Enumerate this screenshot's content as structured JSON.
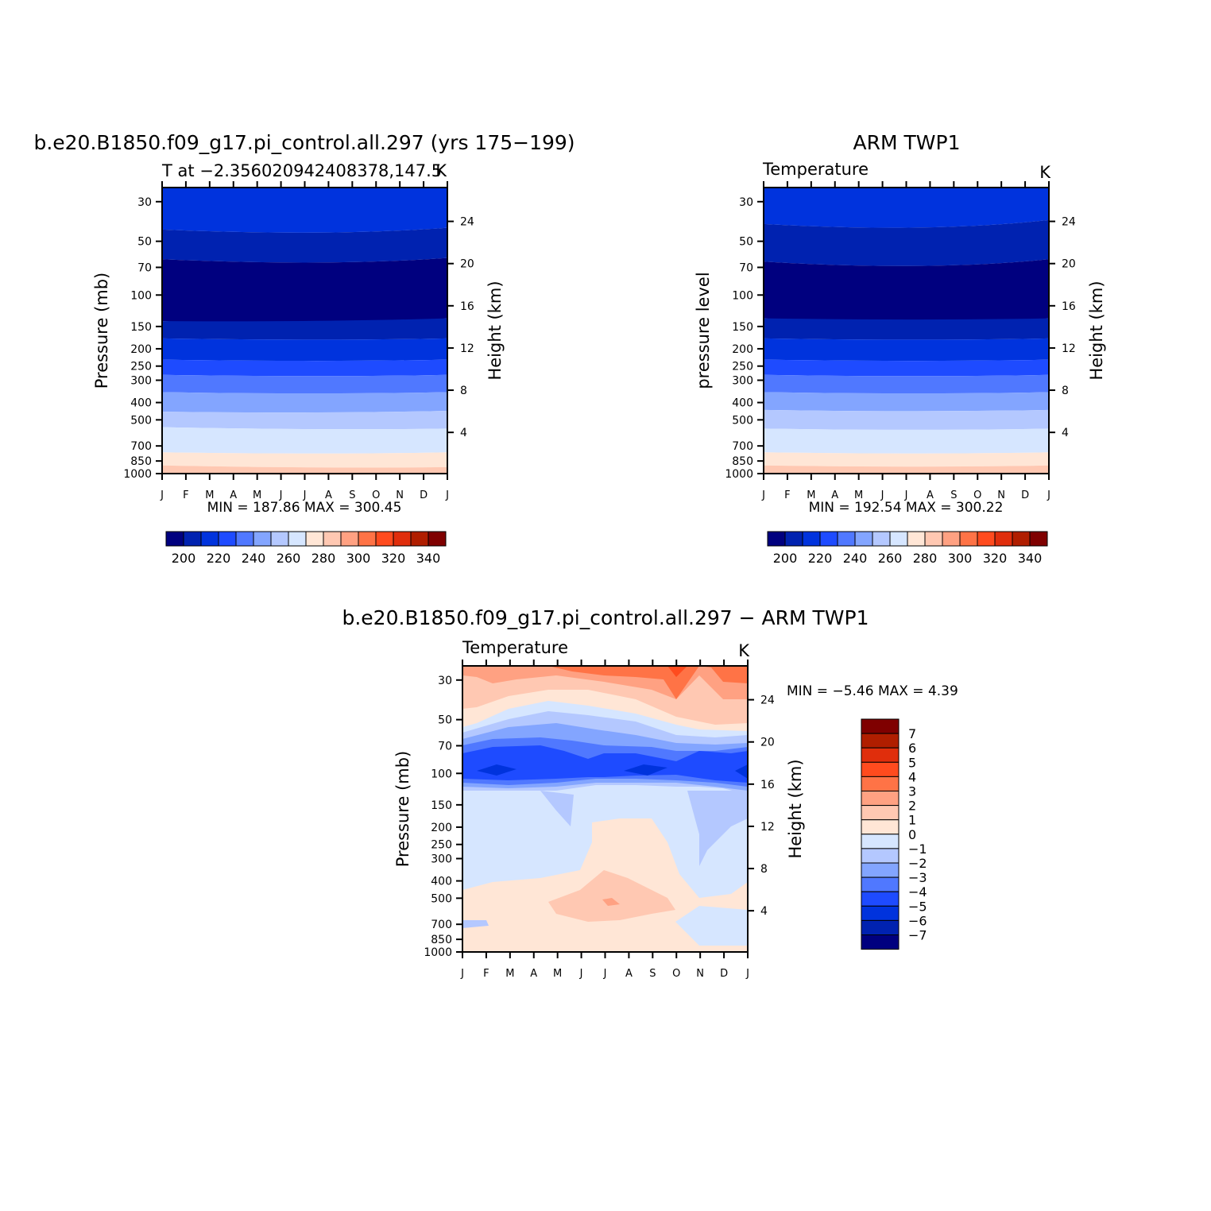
{
  "colors": {
    "abs_scale": [
      "#00007f",
      "#0022b0",
      "#0033dd",
      "#1e4bff",
      "#5078ff",
      "#83a5ff",
      "#b4c8ff",
      "#d6e6ff",
      "#ffe6d6",
      "#ffc8b2",
      "#ffa182",
      "#ff7346",
      "#ff4b1e",
      "#e02e0c",
      "#b01e00",
      "#7f0000"
    ],
    "diff_scale": [
      "#00007f",
      "#0022b0",
      "#0033dd",
      "#1e4bff",
      "#5078ff",
      "#83a5ff",
      "#b4c8ff",
      "#d6e6ff",
      "#ffe6d6",
      "#ffc8b2",
      "#ffa182",
      "#ff7346",
      "#ff4b1e",
      "#e02e0c",
      "#b01e00",
      "#7f0000"
    ]
  },
  "chart_data": [
    {
      "type": "heatmap",
      "title": "b.e20.B1850.f09_g17.pi_control.all.297 (yrs 175−199)",
      "subtitle": "T at −2.356020942408378,147.5",
      "units": "K",
      "ylabel": "Pressure (mb)",
      "ylabel_right": "Height (km)",
      "x_ticks": [
        "J",
        "F",
        "M",
        "A",
        "M",
        "J",
        "J",
        "A",
        "S",
        "O",
        "N",
        "D",
        "J"
      ],
      "y_ticks": [
        "30",
        "50",
        "70",
        "100",
        "150",
        "200",
        "250",
        "300",
        "400",
        "500",
        "700",
        "850",
        "1000"
      ],
      "y_ticks_right": [
        "24",
        "20",
        "16",
        "12",
        "8",
        "4"
      ],
      "y_scale": "log",
      "ylim": [
        1000,
        25
      ],
      "stats": "MIN =  187.86  MAX =  300.45",
      "colorbar_labels": [
        "200",
        "220",
        "240",
        "260",
        "280",
        "300",
        "320",
        "340"
      ],
      "levels_left": [
        25,
        43,
        63,
        140,
        175,
        230,
        280,
        350,
        450,
        550,
        760,
        900,
        1000
      ],
      "levels_right": [
        25,
        42,
        62,
        135,
        175,
        230,
        280,
        350,
        445,
        560,
        760,
        920,
        1000
      ],
      "level_colors": [
        2,
        1,
        0,
        1,
        2,
        3,
        4,
        5,
        6,
        7,
        8,
        9,
        10
      ]
    },
    {
      "type": "heatmap",
      "title": "ARM TWP1",
      "subtitle": "Temperature",
      "units": "K",
      "ylabel": "pressure level",
      "ylabel_right": "Height (km)",
      "x_ticks": [
        "J",
        "F",
        "M",
        "A",
        "M",
        "J",
        "J",
        "A",
        "S",
        "O",
        "N",
        "D",
        "J"
      ],
      "y_ticks": [
        "30",
        "50",
        "70",
        "100",
        "150",
        "200",
        "250",
        "300",
        "400",
        "500",
        "700",
        "850",
        "1000"
      ],
      "y_ticks_right": [
        "24",
        "20",
        "16",
        "12",
        "8",
        "4"
      ],
      "y_scale": "log",
      "ylim": [
        1000,
        25
      ],
      "stats": "MIN =  192.54  MAX =  300.22",
      "colorbar_labels": [
        "200",
        "220",
        "240",
        "260",
        "280",
        "300",
        "320",
        "340"
      ],
      "levels_left": [
        25,
        40,
        65,
        135,
        175,
        230,
        280,
        350,
        440,
        560,
        760,
        900,
        1000
      ],
      "levels_right": [
        25,
        38,
        63,
        135,
        175,
        230,
        280,
        350,
        440,
        560,
        760,
        900,
        1000
      ],
      "level_colors": [
        2,
        1,
        0,
        1,
        2,
        3,
        4,
        5,
        6,
        7,
        8,
        9,
        10
      ]
    },
    {
      "type": "heatmap",
      "title": "b.e20.B1850.f09_g17.pi_control.all.297 − ARM TWP1",
      "subtitle": "Temperature",
      "units": "K",
      "ylabel": "Pressure (mb)",
      "ylabel_right": "Height (km)",
      "x_ticks": [
        "J",
        "F",
        "M",
        "A",
        "M",
        "J",
        "J",
        "A",
        "S",
        "O",
        "N",
        "D",
        "J"
      ],
      "y_ticks": [
        "30",
        "50",
        "70",
        "100",
        "150",
        "200",
        "250",
        "300",
        "400",
        "500",
        "700",
        "850",
        "1000"
      ],
      "y_ticks_right": [
        "24",
        "20",
        "16",
        "12",
        "8",
        "4"
      ],
      "y_scale": "log",
      "ylim": [
        1000,
        25
      ],
      "stats": "MIN =   −5.46  MAX =     4.39",
      "colorbar_labels": [
        "7",
        "6",
        "5",
        "4",
        "3",
        "2",
        "1",
        "0",
        "−1",
        "−2",
        "−3",
        "−4",
        "−5",
        "−6",
        "−7"
      ]
    }
  ]
}
